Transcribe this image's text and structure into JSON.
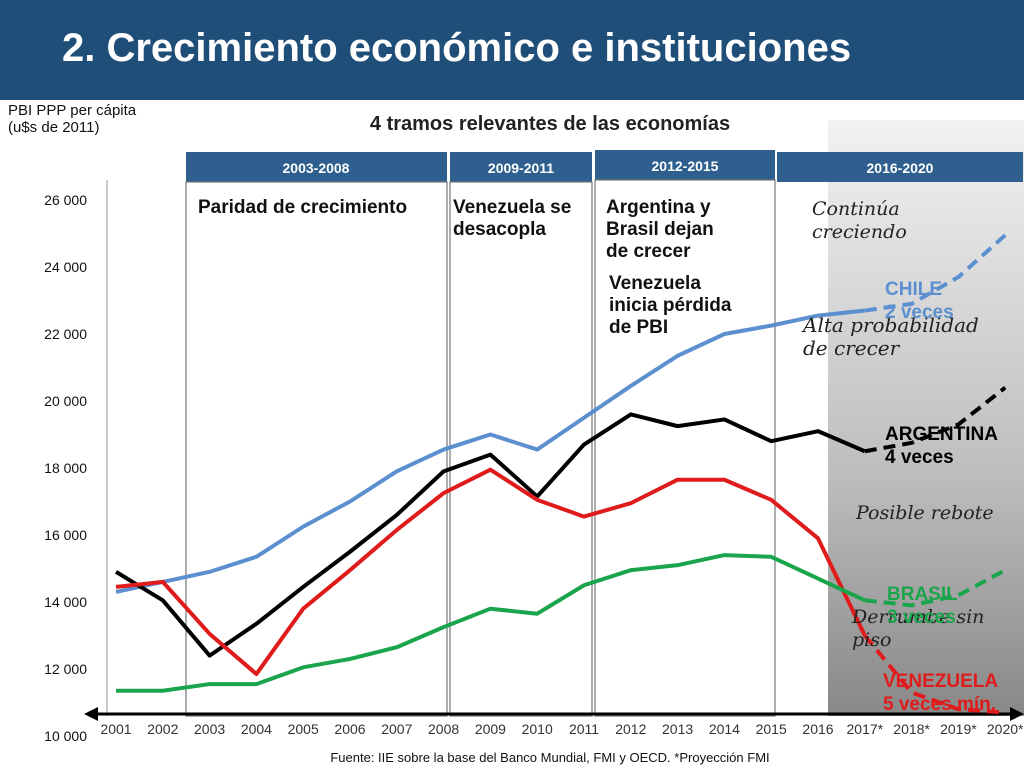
{
  "title": "2. Crecimiento económico e instituciones",
  "y_axis_label": [
    "PBI PPP per cápita",
    "(u$s de 2011)"
  ],
  "subtitle": "4 tramos relevantes de las economías",
  "source": "Fuente: IIE sobre la base del Banco Mundial, FMI y OECD. *Proyección FMI",
  "periods": [
    {
      "label": "2003-2008",
      "notes": [
        "Paridad de crecimiento"
      ]
    },
    {
      "label": "2009-2011",
      "notes": [
        "Venezuela se",
        "desacopla"
      ]
    },
    {
      "label": "2012-2015",
      "notes": [
        "Argentina y",
        "Brasil dejan",
        "de crecer"
      ],
      "notes2": [
        "Venezuela",
        "inicia pérdida",
        "de PBI"
      ]
    },
    {
      "label": "2016-2020",
      "notes": []
    }
  ],
  "annotations": {
    "chile_continua": [
      "Continúa",
      "creciendo"
    ],
    "alta_prob": [
      "Alta probabilidad",
      "de crecer"
    ],
    "posible_rebote": "Posible rebote",
    "derrumbe": [
      "Derrumbe sin",
      "piso"
    ]
  },
  "series_labels": {
    "chile": [
      "CHILE",
      "2 veces"
    ],
    "argentina": [
      "ARGENTINA",
      "4 veces"
    ],
    "brasil": [
      "BRASIL",
      "3 veces"
    ],
    "venezuela": [
      "VENEZUELA",
      "5 veces mín."
    ]
  },
  "colors": {
    "chile": "#5b8fd0",
    "argentina": "#000000",
    "brasil": "#1aa54c",
    "venezuela": "#e01b1b",
    "header": "#1f4e79",
    "band": "#2e5f8f"
  },
  "chart_data": {
    "type": "line",
    "x": [
      "2001",
      "2002",
      "2003",
      "2004",
      "2005",
      "2006",
      "2007",
      "2008",
      "2009",
      "2010",
      "2011",
      "2012",
      "2013",
      "2014",
      "2015",
      "2016",
      "2017*",
      "2018*",
      "2019*",
      "2020*"
    ],
    "ylim": [
      10000,
      26000
    ],
    "yticks": [
      "10 000",
      "12 000",
      "14 000",
      "16 000",
      "18 000",
      "20 000",
      "22 000",
      "24 000",
      "26 000"
    ],
    "ytick_values": [
      10000,
      12000,
      14000,
      16000,
      18000,
      20000,
      22000,
      24000,
      26000
    ],
    "projection_start": "2017*",
    "series": [
      {
        "key": "chile",
        "name": "CHILE",
        "values": [
          14300,
          14600,
          14900,
          15350,
          16250,
          17000,
          17900,
          18550,
          19000,
          18550,
          19500,
          20450,
          21350,
          22000,
          22250,
          22550,
          22700,
          22900,
          23700,
          24950
        ]
      },
      {
        "key": "argentina",
        "name": "ARGENTINA",
        "values": [
          14900,
          14050,
          12400,
          13350,
          14450,
          15500,
          16600,
          17900,
          18400,
          17150,
          18700,
          19600,
          19250,
          19450,
          18800,
          19100,
          18500,
          18750,
          19300,
          20400
        ]
      },
      {
        "key": "venezuela",
        "name": "VENEZUELA",
        "values": [
          14450,
          14600,
          13050,
          11850,
          13800,
          14950,
          16150,
          17250,
          17950,
          17050,
          16550,
          16950,
          17650,
          17650,
          17050,
          15900,
          13000,
          11300,
          10800,
          10700
        ]
      },
      {
        "key": "brasil",
        "name": "BRASIL",
        "values": [
          11350,
          11350,
          11550,
          11550,
          12050,
          12300,
          12650,
          13250,
          13800,
          13650,
          14500,
          14950,
          15100,
          15400,
          15350,
          14700,
          14050,
          13900,
          14200,
          14950
        ]
      }
    ]
  }
}
